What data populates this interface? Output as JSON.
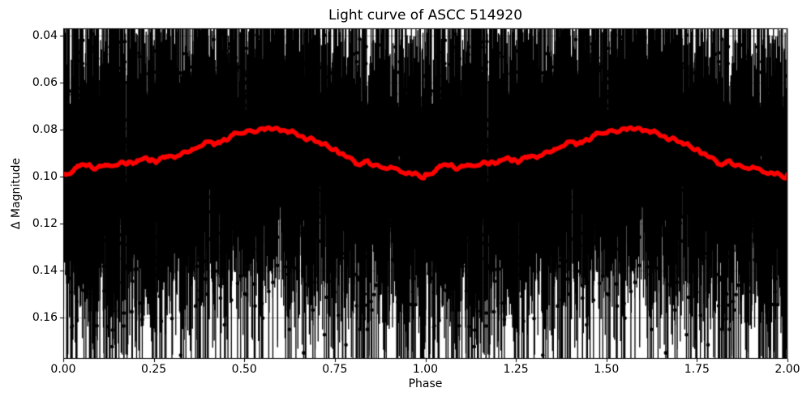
{
  "figure": {
    "background": "#ffffff",
    "title": "Light curve of ASCC 514920"
  },
  "chart_data": {
    "type": "scatter",
    "title": "Light curve of ASCC 514920",
    "xlabel": "Phase",
    "ylabel": "Δ Magnitude",
    "x_axis": {
      "min": 0.0,
      "max": 2.0,
      "tick_values": [
        0.0,
        0.25,
        0.5,
        0.75,
        1.0,
        1.25,
        1.5,
        1.75,
        2.0
      ],
      "tick_labels": [
        "0.00",
        "0.25",
        "0.50",
        "0.75",
        "1.00",
        "1.25",
        "1.50",
        "1.75",
        "2.00"
      ]
    },
    "y_axis": {
      "inverted": true,
      "top_value": 0.0369,
      "bottom_value": 0.1776,
      "tick_values": [
        0.04,
        0.06,
        0.08,
        0.1,
        0.12,
        0.14,
        0.16
      ],
      "tick_labels": [
        "0.04",
        "0.06",
        "0.08",
        "0.10",
        "0.12",
        "0.14",
        "0.16"
      ]
    },
    "grid": {
      "show": true,
      "color": "#b0b0b0",
      "line_width": 0.9
    },
    "spine_color": "#000000",
    "series": [
      {
        "name": "photometric-measurements",
        "type": "errorbar_scatter",
        "color": "#000000",
        "marker_radius": 2.3,
        "errorbar_line_width": 1.3,
        "phase_duplicated": true,
        "n_points_per_cycle": 3200,
        "seed": 7,
        "noise_sigma": 0.0165,
        "faint_tail": {
          "prob": 0.28,
          "scale": 0.08
        },
        "bright_tail": {
          "prob": 0.1,
          "min": 0.01,
          "max": 0.06
        },
        "errorbar_model": {
          "base": 0.012,
          "gauss_scale": 0.01,
          "uniform_scale": 0.016,
          "offset_scale": 0.3
        }
      },
      {
        "name": "running-mean",
        "type": "line",
        "color": "#ff0000",
        "line_width": 5.5,
        "wiggle_amplitude": 0.0008,
        "points": [
          [
            0.0,
            0.0995
          ],
          [
            0.02,
            0.0985
          ],
          [
            0.04,
            0.0962
          ],
          [
            0.06,
            0.0948
          ],
          [
            0.08,
            0.0968
          ],
          [
            0.105,
            0.0958
          ],
          [
            0.13,
            0.095
          ],
          [
            0.16,
            0.0945
          ],
          [
            0.185,
            0.0942
          ],
          [
            0.21,
            0.0932
          ],
          [
            0.23,
            0.0926
          ],
          [
            0.255,
            0.0934
          ],
          [
            0.285,
            0.0918
          ],
          [
            0.315,
            0.0906
          ],
          [
            0.345,
            0.0895
          ],
          [
            0.375,
            0.0872
          ],
          [
            0.395,
            0.085
          ],
          [
            0.415,
            0.0862
          ],
          [
            0.435,
            0.0855
          ],
          [
            0.455,
            0.0842
          ],
          [
            0.472,
            0.0816
          ],
          [
            0.492,
            0.0824
          ],
          [
            0.512,
            0.081
          ],
          [
            0.535,
            0.0806
          ],
          [
            0.558,
            0.0794
          ],
          [
            0.578,
            0.0792
          ],
          [
            0.598,
            0.0802
          ],
          [
            0.618,
            0.0806
          ],
          [
            0.638,
            0.0818
          ],
          [
            0.658,
            0.0836
          ],
          [
            0.678,
            0.084
          ],
          [
            0.7,
            0.085
          ],
          [
            0.725,
            0.0866
          ],
          [
            0.75,
            0.0886
          ],
          [
            0.772,
            0.0906
          ],
          [
            0.79,
            0.0912
          ],
          [
            0.808,
            0.0946
          ],
          [
            0.825,
            0.094
          ],
          [
            0.84,
            0.0932
          ],
          [
            0.858,
            0.095
          ],
          [
            0.88,
            0.0958
          ],
          [
            0.905,
            0.097
          ],
          [
            0.93,
            0.0976
          ],
          [
            0.955,
            0.0986
          ],
          [
            0.975,
            0.0994
          ],
          [
            0.99,
            0.1006
          ],
          [
            1.0,
            0.1005
          ]
        ]
      }
    ]
  }
}
